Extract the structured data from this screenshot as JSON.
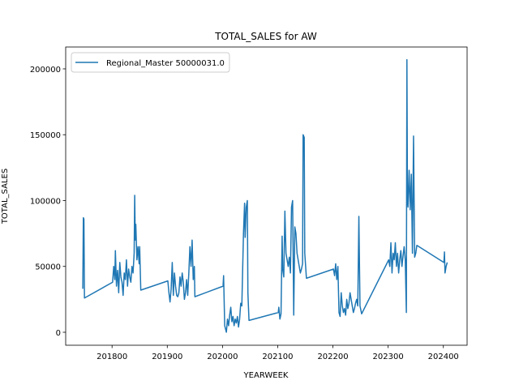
{
  "chart_data": {
    "type": "line",
    "title": "TOTAL_SALES for AW",
    "x_label": "YEARWEEK",
    "y_label": "TOTAL_SALES",
    "x": [
      201747,
      201748,
      201749,
      201750,
      201801,
      201803,
      201805,
      201806,
      201808,
      201810,
      201812,
      201814,
      201816,
      201818,
      201820,
      201822,
      201824,
      201826,
      201828,
      201830,
      201832,
      201834,
      201836,
      201838,
      201840,
      201841,
      201842,
      201843,
      201845,
      201847,
      201849,
      201850,
      201852,
      201901,
      201903,
      201905,
      201907,
      201909,
      201911,
      201913,
      201915,
      201917,
      201919,
      201921,
      201923,
      201925,
      201927,
      201929,
      201931,
      201933,
      201935,
      201937,
      201939,
      201941,
      201943,
      201945,
      201947,
      201949,
      201950,
      202001,
      202002,
      202004,
      202007,
      202009,
      202011,
      202013,
      202015,
      202017,
      202019,
      202021,
      202023,
      202025,
      202027,
      202029,
      202031,
      202033,
      202035,
      202038,
      202040,
      202041,
      202043,
      202045,
      202046,
      202048,
      202101,
      202102,
      202104,
      202106,
      202108,
      202109,
      202111,
      202113,
      202115,
      202117,
      202119,
      202121,
      202123,
      202125,
      202127,
      202129,
      202131,
      202133,
      202135,
      202137,
      202139,
      202141,
      202143,
      202145,
      202146,
      202148,
      202149,
      202152,
      202201,
      202203,
      202205,
      202207,
      202209,
      202211,
      202213,
      202215,
      202217,
      202219,
      202221,
      202223,
      202225,
      202227,
      202229,
      202231,
      202233,
      202235,
      202237,
      202239,
      202241,
      202243,
      202245,
      202247,
      202249,
      202252,
      202301,
      202303,
      202305,
      202307,
      202309,
      202311,
      202313,
      202315,
      202317,
      202319,
      202321,
      202323,
      202325,
      202327,
      202329,
      202331,
      202333,
      202334,
      202335,
      202336,
      202338,
      202340,
      202342,
      202344,
      202346,
      202348,
      202350,
      202352,
      202401,
      202402,
      202403,
      202405,
      202407
    ],
    "series": [
      {
        "name": "Regional_Master 50000031.0",
        "color": "#1f77b4",
        "values": [
          33000,
          87000,
          86000,
          26000,
          38000,
          50000,
          40000,
          62000,
          35000,
          47000,
          30000,
          53000,
          42000,
          38000,
          28000,
          45000,
          40000,
          55000,
          35000,
          48000,
          42000,
          38000,
          50000,
          45000,
          60000,
          104000,
          70000,
          82000,
          55000,
          65000,
          52000,
          65000,
          32000,
          39000,
          30000,
          23000,
          33000,
          53000,
          28000,
          45000,
          35000,
          28000,
          27000,
          30000,
          42000,
          35000,
          45000,
          38000,
          25000,
          30000,
          40000,
          28000,
          45000,
          65000,
          50000,
          70000,
          40000,
          50000,
          27000,
          35000,
          43000,
          5000,
          0,
          10000,
          5000,
          13000,
          19000,
          8000,
          12000,
          5000,
          10000,
          7000,
          12000,
          4000,
          10000,
          22000,
          20000,
          75000,
          98000,
          72000,
          95000,
          100000,
          30000,
          9000,
          15000,
          19000,
          10000,
          14000,
          73000,
          48000,
          42000,
          92000,
          60000,
          55000,
          50000,
          57000,
          45000,
          95000,
          100000,
          13000,
          80000,
          75000,
          60000,
          55000,
          50000,
          45000,
          48000,
          52000,
          150000,
          148000,
          60000,
          41000,
          48000,
          43000,
          52000,
          40000,
          50000,
          15000,
          12000,
          30000,
          20000,
          15000,
          18000,
          13000,
          25000,
          18000,
          22000,
          30000,
          25000,
          20000,
          15000,
          18000,
          22000,
          25000,
          20000,
          88000,
          20000,
          14000,
          55000,
          50000,
          68000,
          45000,
          60000,
          55000,
          68000,
          50000,
          60000,
          45000,
          55000,
          62000,
          50000,
          58000,
          65000,
          55000,
          15000,
          207000,
          100000,
          95000,
          123000,
          93000,
          120000,
          60000,
          149000,
          57000,
          60000,
          66000,
          53000,
          61000,
          45000,
          50000,
          53000
        ]
      }
    ],
    "xlim": [
      201716,
      202443
    ],
    "ylim": [
      -9850,
      216600
    ],
    "xticks": [
      201800,
      201900,
      202000,
      202100,
      202200,
      202300,
      202400
    ],
    "yticks": [
      0,
      50000,
      100000,
      150000,
      200000
    ],
    "legend": "upper left"
  }
}
